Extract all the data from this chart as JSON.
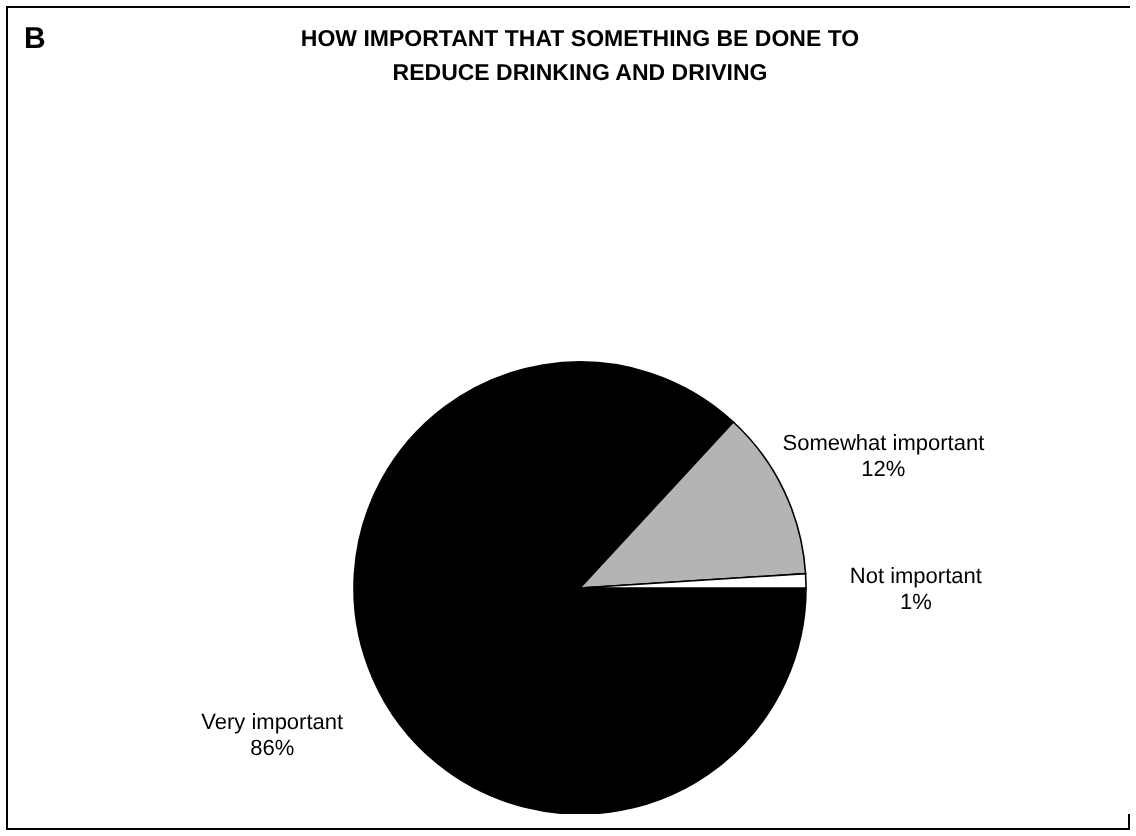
{
  "chart_data": {
    "type": "pie",
    "title": [
      "HOW IMPORTANT THAT SOMETHING BE DONE TO",
      "REDUCE DRINKING AND DRIVING"
    ],
    "annotations": [
      "B"
    ],
    "categories": [
      "Very important",
      "Somewhat important",
      "Not important"
    ],
    "values": [
      86,
      12,
      1
    ],
    "value_labels": [
      "86%",
      "12%",
      "1%"
    ],
    "colors": [
      "#000000",
      "#b4b4b4",
      "#ffffff"
    ],
    "legend": false
  }
}
